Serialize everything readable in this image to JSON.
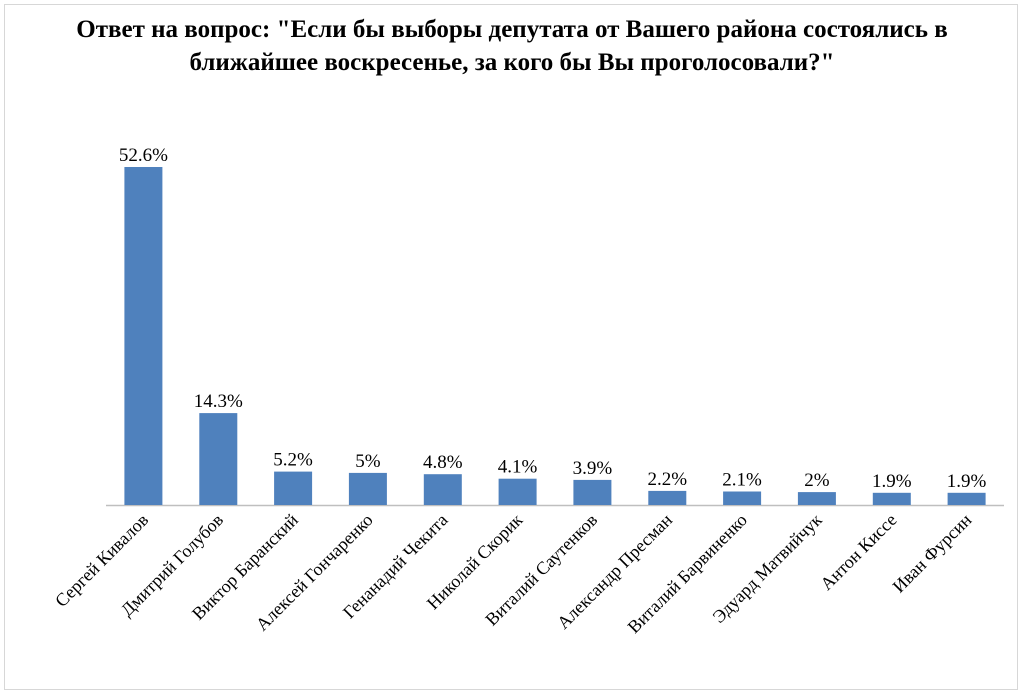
{
  "chart_data": {
    "type": "bar",
    "title": "Ответ на вопрос: \"Если бы выборы депутата от Вашего района состоялись в ближайшее воскресенье, за кого бы Вы проголосовали?\"",
    "xlabel": "",
    "ylabel": "",
    "ylim": [
      0,
      52.6
    ],
    "grid": false,
    "legend": "none",
    "bar_color": "#4f81bd",
    "categories": [
      "Сергей Кивалов",
      "Дмитрий Голубов",
      "Виктор Баранский",
      "Алексей Гончаренко",
      "Генанадий Чекита",
      "Николай Скорик",
      "Виталий Саутенков",
      "Александр Пресман",
      "Виталий Барвиненко",
      "Эдуард Матвийчук",
      "Антон Киссе",
      "Иван Фурсин"
    ],
    "values": [
      52.6,
      14.3,
      5.2,
      5,
      4.8,
      4.1,
      3.9,
      2.2,
      2.1,
      2,
      1.9,
      1.9
    ],
    "data_labels": [
      "52.6%",
      "14.3%",
      "5.2%",
      "5%",
      "4.8%",
      "4.1%",
      "3.9%",
      "2.2%",
      "2.1%",
      "2%",
      "1.9%",
      "1.9%"
    ]
  }
}
